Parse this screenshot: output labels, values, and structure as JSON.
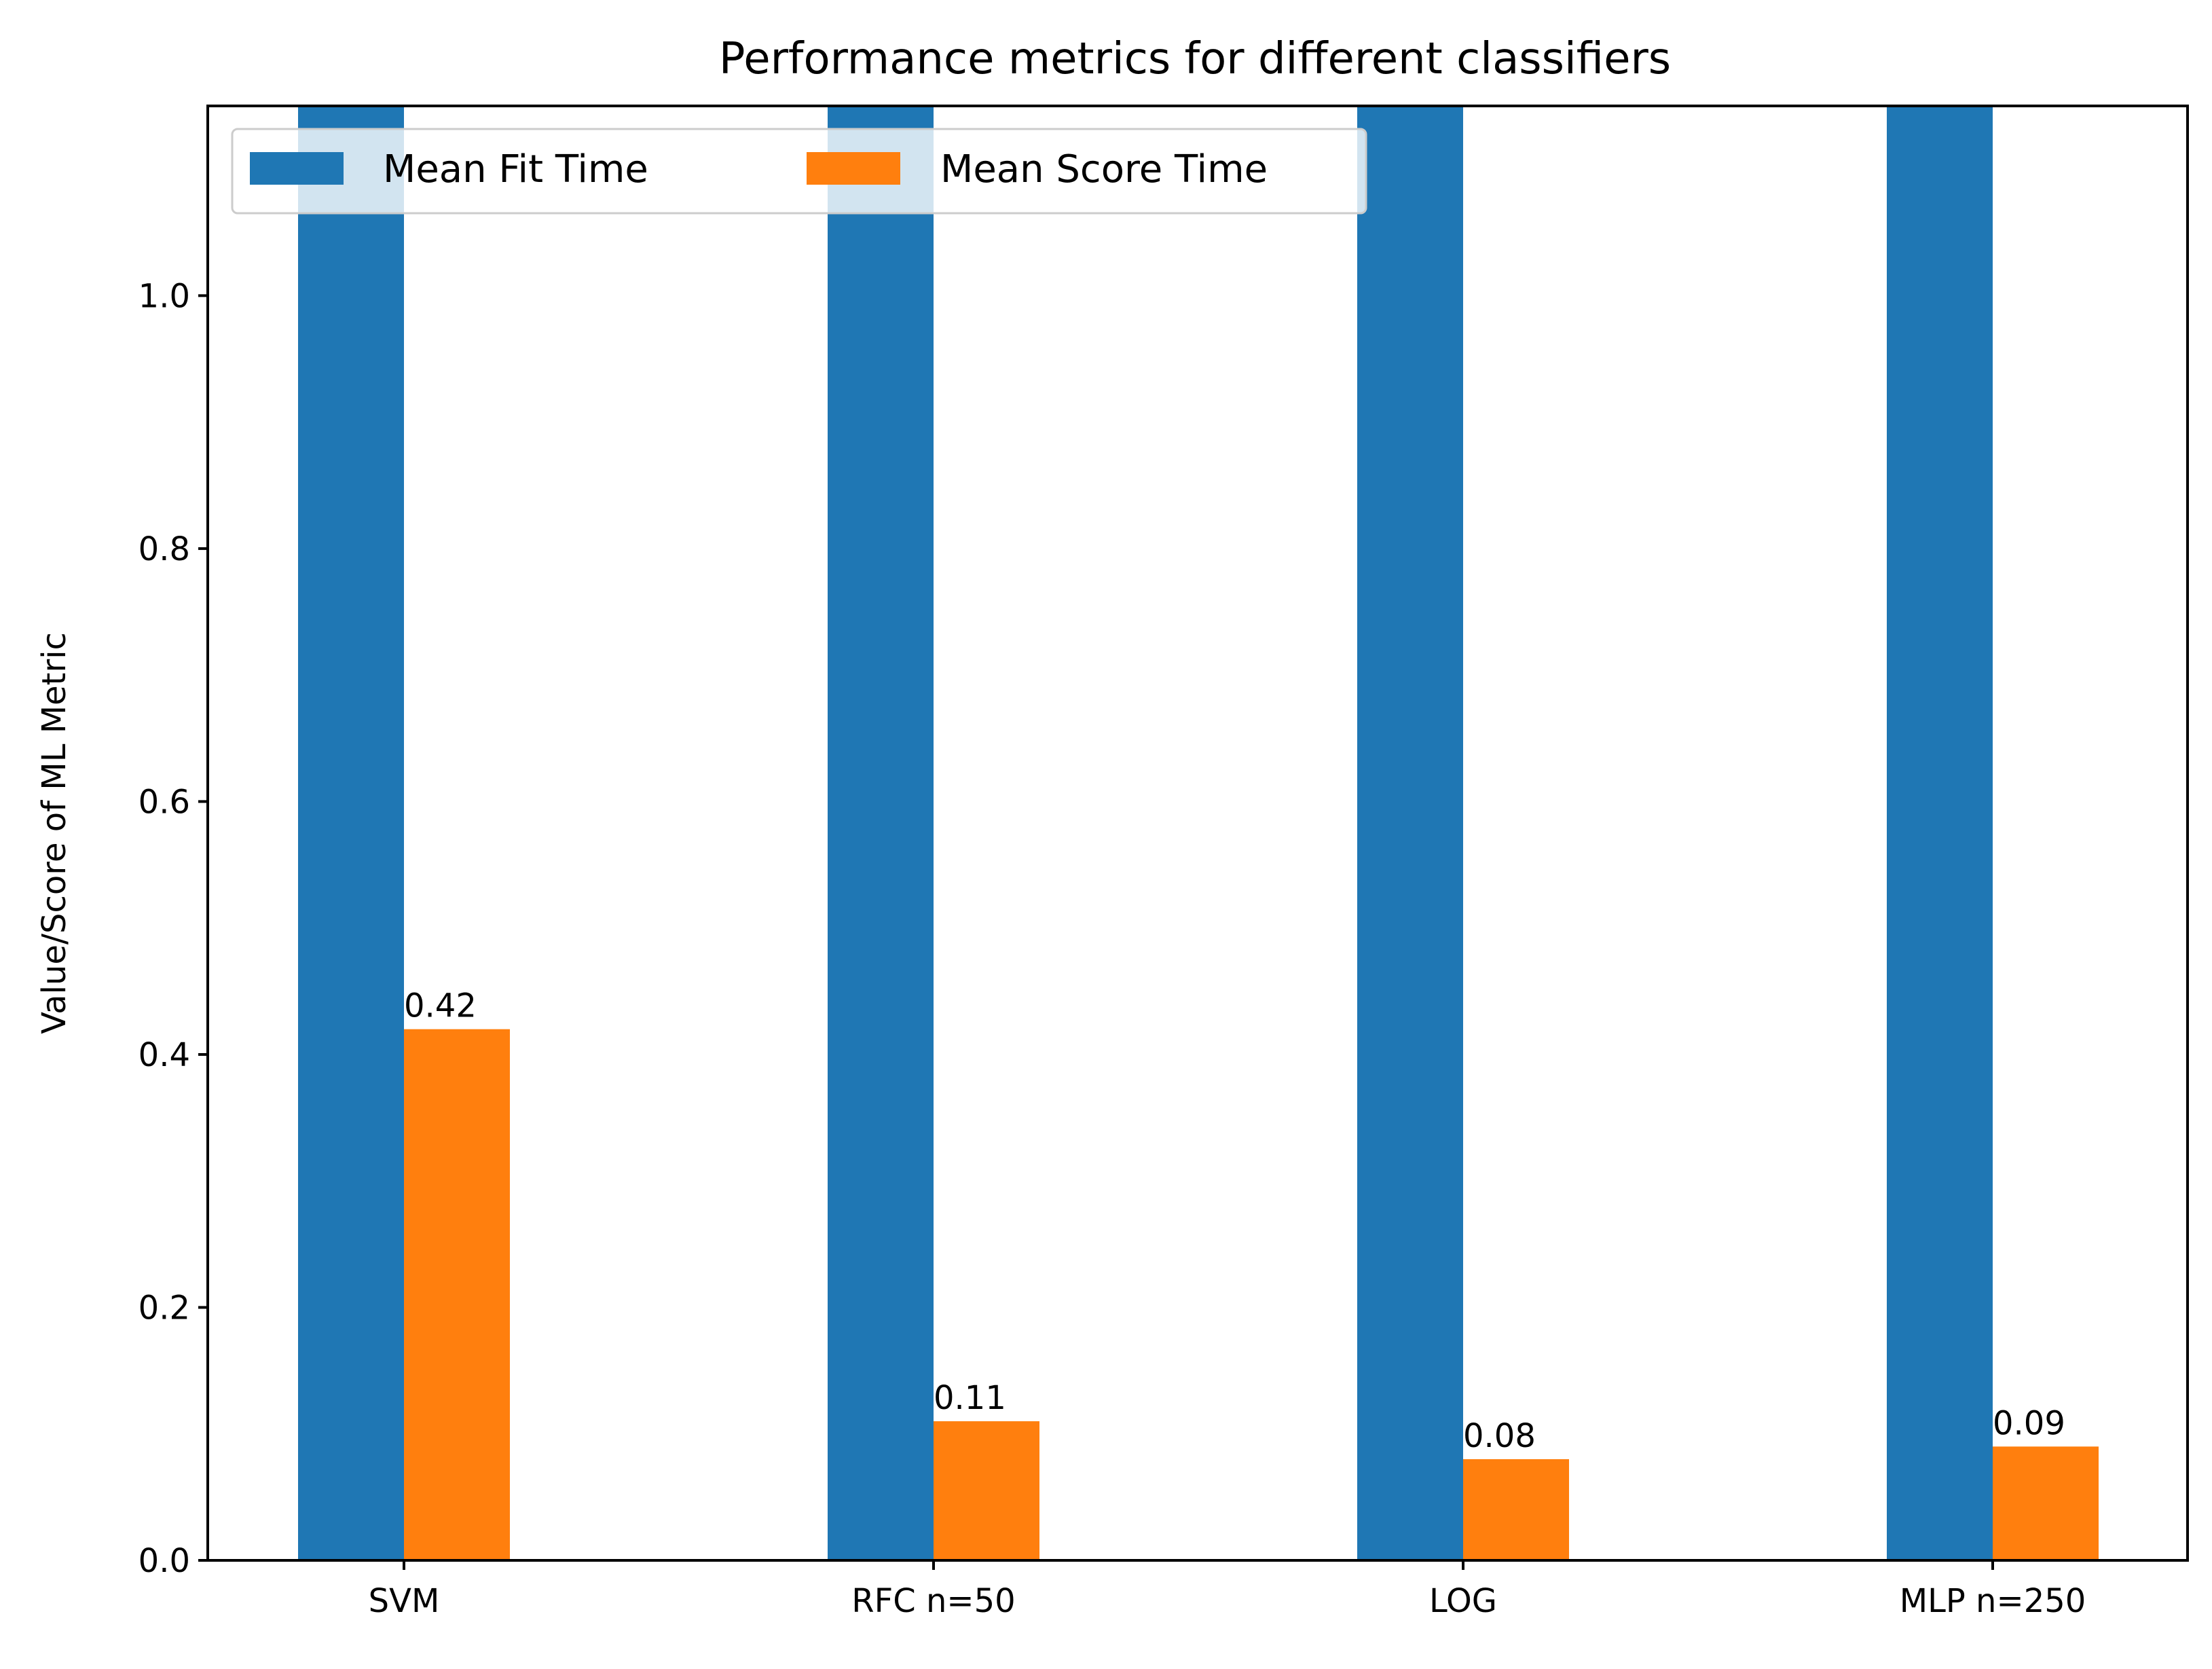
{
  "chart_data": {
    "type": "bar",
    "title": "Performance metrics for different classifiers",
    "xlabel": "",
    "ylabel": "Value/Score of ML Metric",
    "categories": [
      "SVM",
      "RFC n=50",
      "LOG",
      "MLP n=250"
    ],
    "series": [
      {
        "name": "Mean Fit Time",
        "color": "#1f77b4",
        "values": [
          1.15,
          1.15,
          1.15,
          1.15
        ],
        "clipped_at_top": true
      },
      {
        "name": "Mean Score Time",
        "color": "#ff7f0e",
        "values": [
          0.42,
          0.11,
          0.08,
          0.09
        ],
        "data_labels": [
          "0.42",
          "0.11",
          "0.08",
          "0.09"
        ]
      }
    ],
    "ylim": [
      0,
      1.15
    ],
    "yticks": [
      0.0,
      0.2,
      0.4,
      0.6,
      0.8,
      1.0
    ],
    "ytick_labels": [
      "0.0",
      "0.2",
      "0.4",
      "0.6",
      "0.8",
      "1.0"
    ],
    "grid": false,
    "legend": {
      "placement": "upper-left",
      "columns": 2
    }
  }
}
